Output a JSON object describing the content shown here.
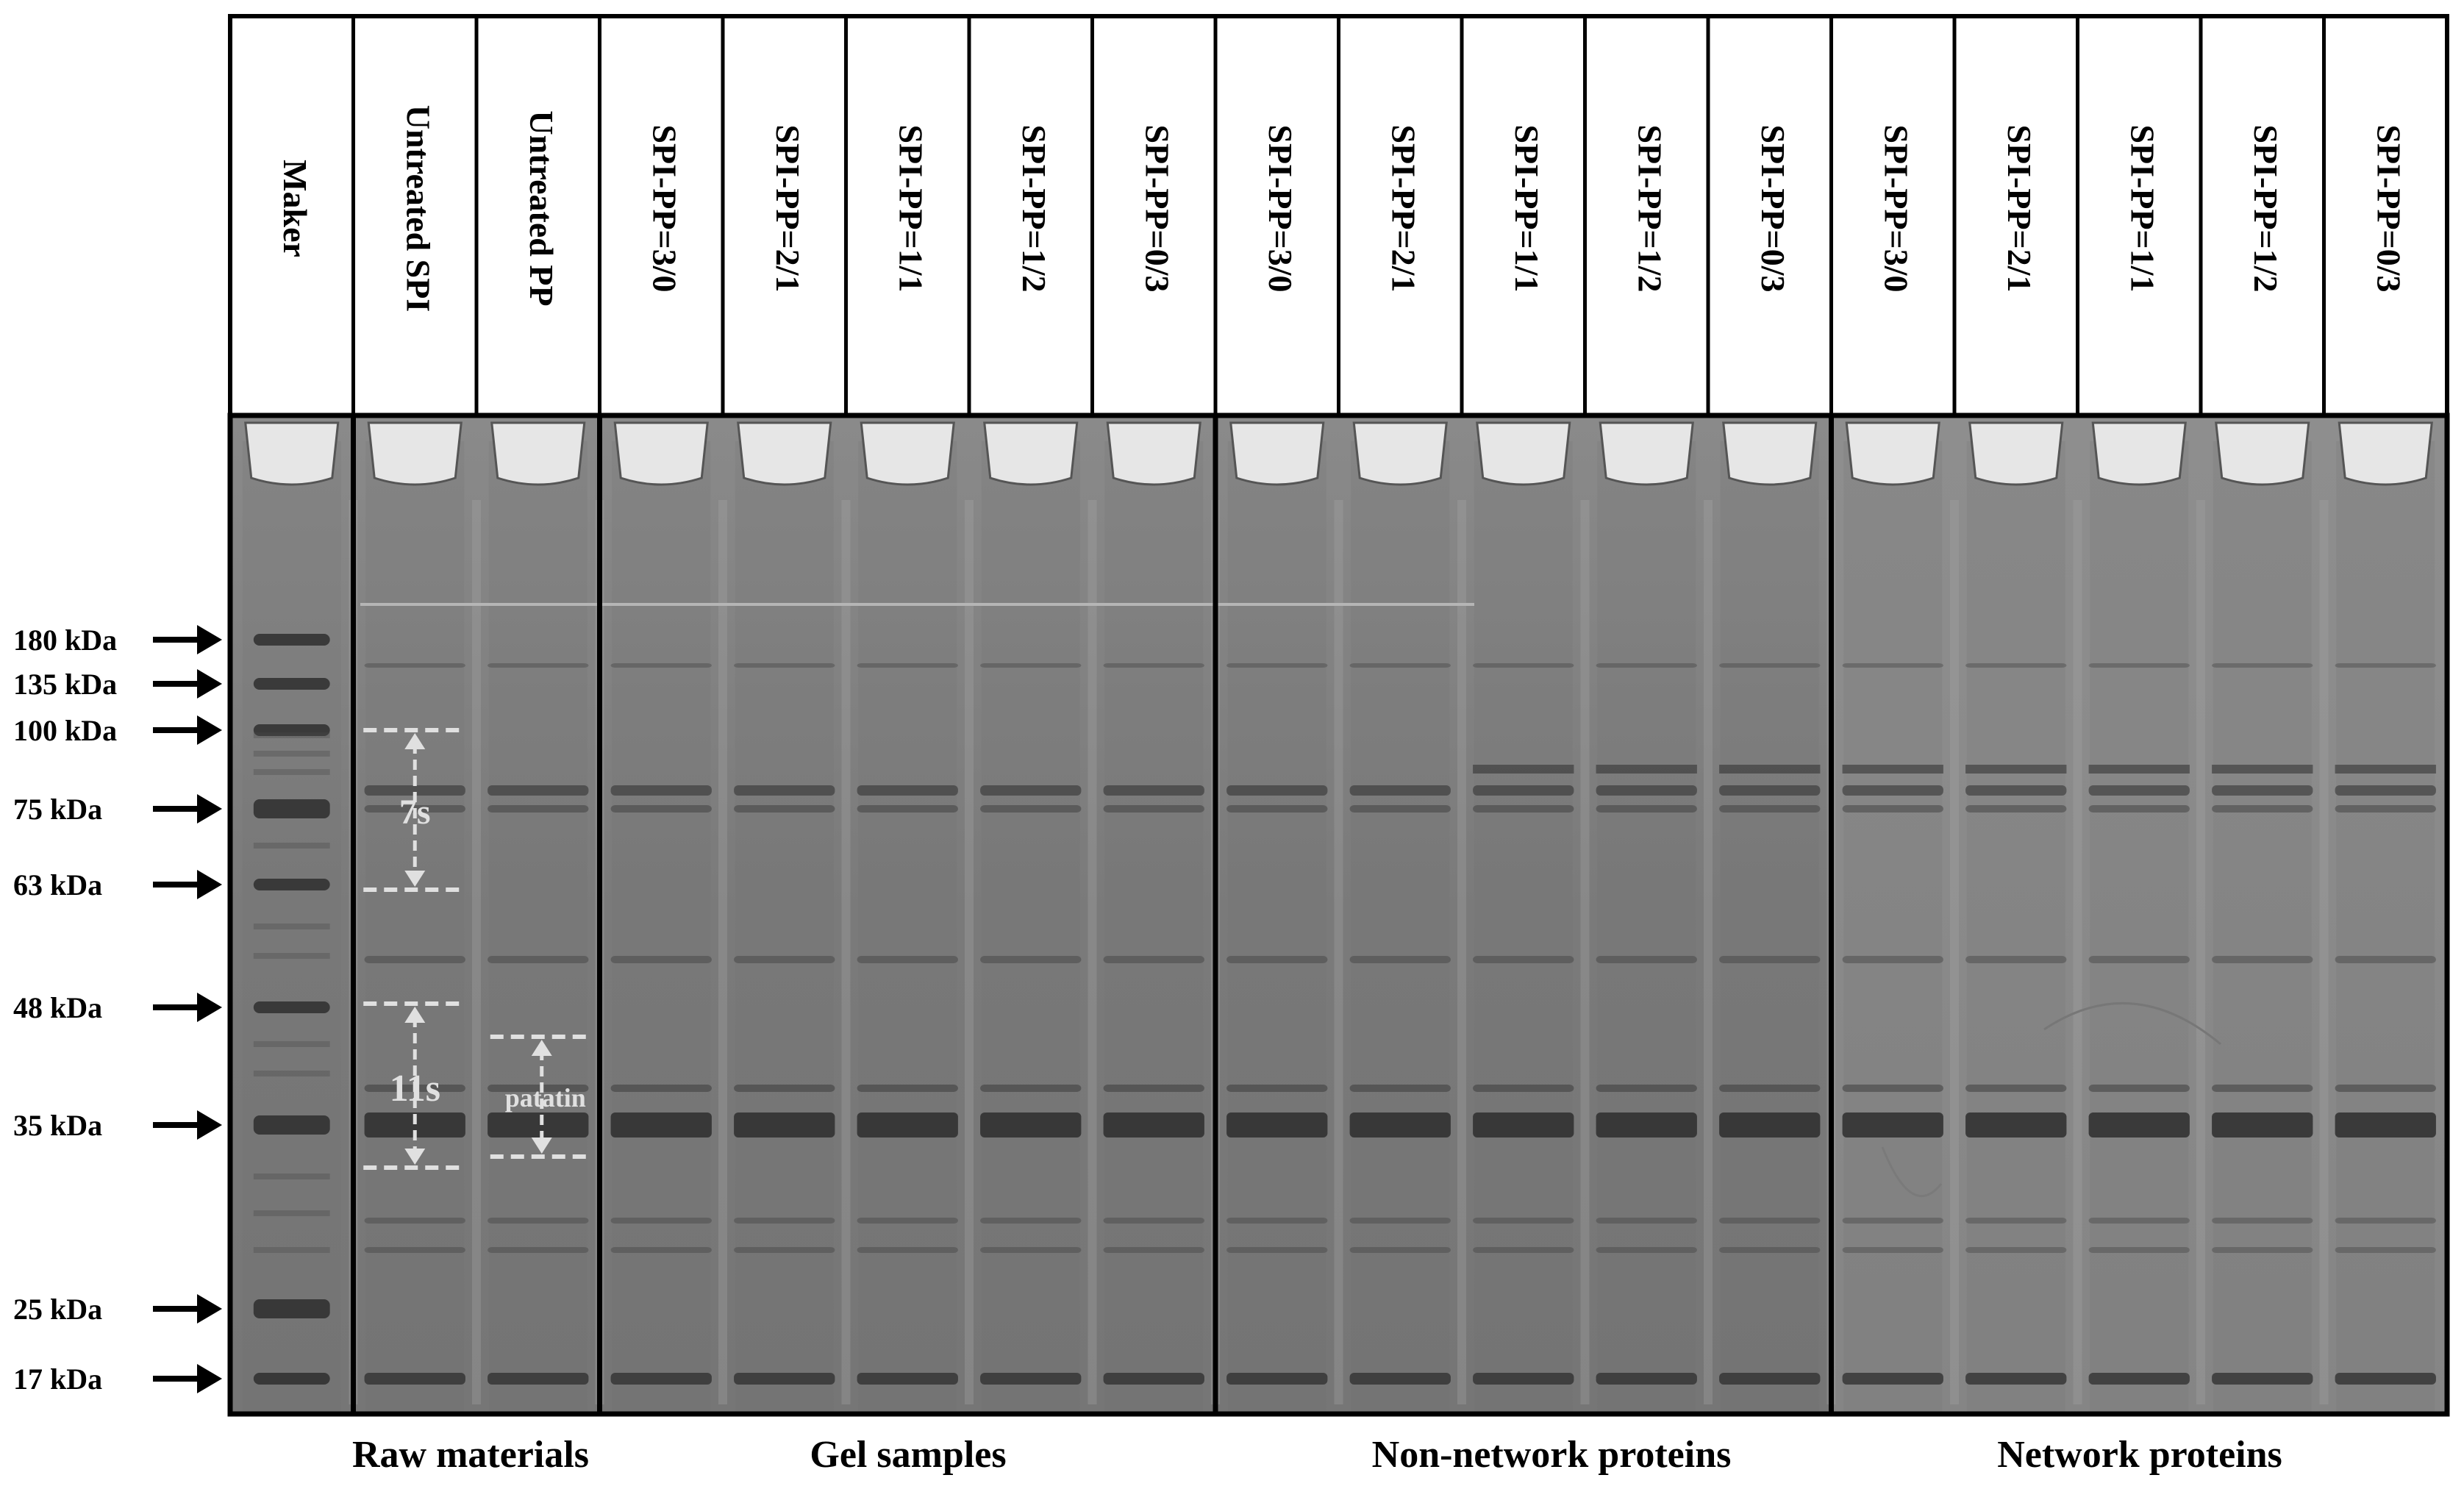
{
  "lanes": [
    "Maker",
    "Untreated SPI",
    "Untreated PP",
    "SPI-PP=3/0",
    "SPI-PP=2/1",
    "SPI-PP=1/1",
    "SPI-PP=1/2",
    "SPI-PP=0/3",
    "SPI-PP=3/0",
    "SPI-PP=2/1",
    "SPI-PP=1/1",
    "SPI-PP=1/2",
    "SPI-PP=0/3",
    "SPI-PP=3/0",
    "SPI-PP=2/1",
    "SPI-PP=1/1",
    "SPI-PP=1/2",
    "SPI-PP=0/3"
  ],
  "markers": [
    {
      "label": "180 kDa",
      "kda": 180
    },
    {
      "label": "135 kDa",
      "kda": 135
    },
    {
      "label": "100 kDa",
      "kda": 100
    },
    {
      "label": "75 kDa",
      "kda": 75
    },
    {
      "label": "63 kDa",
      "kda": 63
    },
    {
      "label": "48 kDa",
      "kda": 48
    },
    {
      "label": "35 kDa",
      "kda": 35
    },
    {
      "label": "25 kDa",
      "kda": 25
    },
    {
      "label": "17 kDa",
      "kda": 17
    }
  ],
  "annotations": {
    "seven_s": "7s",
    "eleven_s": "11s",
    "patatin": "patatin"
  },
  "groups": [
    "Raw materials",
    "Gel samples",
    "Non-network proteins",
    "Network proteins"
  ],
  "colors": {
    "gel": "#7d7d7d",
    "band": "#2e2e2e",
    "frame": "#000000",
    "dashed": "#e0e0e0"
  }
}
